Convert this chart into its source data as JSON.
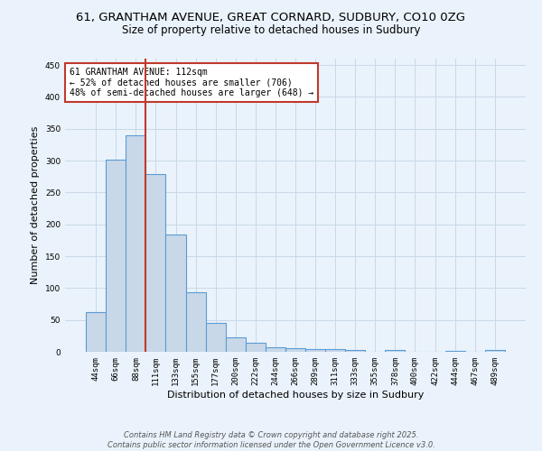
{
  "title_line1": "61, GRANTHAM AVENUE, GREAT CORNARD, SUDBURY, CO10 0ZG",
  "title_line2": "Size of property relative to detached houses in Sudbury",
  "xlabel": "Distribution of detached houses by size in Sudbury",
  "ylabel": "Number of detached properties",
  "bar_labels": [
    "44sqm",
    "66sqm",
    "88sqm",
    "111sqm",
    "133sqm",
    "155sqm",
    "177sqm",
    "200sqm",
    "222sqm",
    "244sqm",
    "266sqm",
    "289sqm",
    "311sqm",
    "333sqm",
    "355sqm",
    "378sqm",
    "400sqm",
    "422sqm",
    "444sqm",
    "467sqm",
    "489sqm"
  ],
  "bar_values": [
    62,
    301,
    340,
    279,
    184,
    93,
    45,
    23,
    14,
    7,
    5,
    4,
    4,
    3,
    0,
    3,
    0,
    0,
    2,
    0,
    3
  ],
  "bar_color": "#c8d8e8",
  "bar_edge_color": "#5b9bd5",
  "vline_color": "#c0392b",
  "vline_x_index": 3,
  "annotation_text": "61 GRANTHAM AVENUE: 112sqm\n← 52% of detached houses are smaller (706)\n48% of semi-detached houses are larger (648) →",
  "annotation_box_color": "white",
  "annotation_edge_color": "#c0392b",
  "ylim": [
    0,
    460
  ],
  "yticks": [
    0,
    50,
    100,
    150,
    200,
    250,
    300,
    350,
    400,
    450
  ],
  "grid_color": "#c8d8e8",
  "background_color": "#eaf3fb",
  "footer_line1": "Contains HM Land Registry data © Crown copyright and database right 2025.",
  "footer_line2": "Contains public sector information licensed under the Open Government Licence v3.0.",
  "title_fontsize": 9.5,
  "subtitle_fontsize": 8.5,
  "tick_fontsize": 6.5,
  "label_fontsize": 8,
  "annotation_fontsize": 7,
  "footer_fontsize": 6
}
